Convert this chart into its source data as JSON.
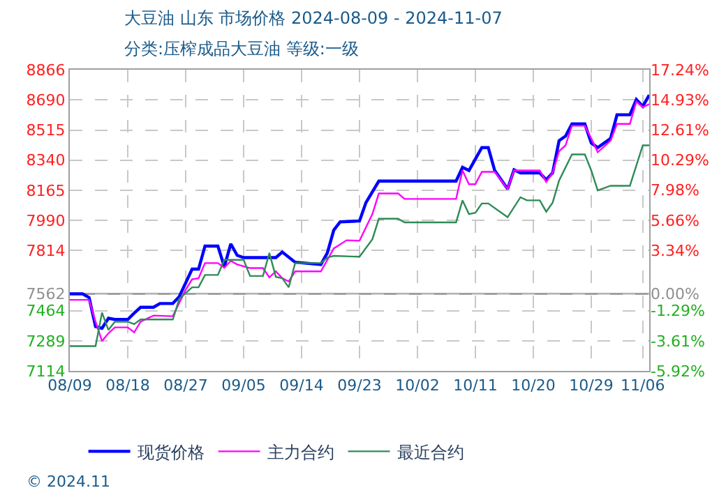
{
  "chart_data": {
    "type": "line",
    "title": "大豆油 山东 市场价格 2024-08-09 - 2024-11-07",
    "subtitle": "分类:压榨成品大豆油 等级:一级",
    "annotations": [
      "© 2024.11"
    ],
    "xlim": [
      "2024-08-09",
      "2024-11-07"
    ],
    "xticks": [
      {
        "value": "2024-08-09",
        "label": "08/09"
      },
      {
        "value": "2024-08-18",
        "label": "08/18"
      },
      {
        "value": "2024-08-27",
        "label": "08/27"
      },
      {
        "value": "2024-09-05",
        "label": "09/05"
      },
      {
        "value": "2024-09-14",
        "label": "09/14"
      },
      {
        "value": "2024-09-23",
        "label": "09/23"
      },
      {
        "value": "2024-10-02",
        "label": "10/02"
      },
      {
        "value": "2024-10-11",
        "label": "10/11"
      },
      {
        "value": "2024-10-20",
        "label": "10/20"
      },
      {
        "value": "2024-10-29",
        "label": "10/29"
      },
      {
        "value": "2024-11-06",
        "label": "11/06"
      }
    ],
    "ylim": [
      7114,
      8866
    ],
    "yticks": [
      8866,
      8690,
      8515,
      8340,
      8165,
      7990,
      7814,
      7562,
      7464,
      7289,
      7114
    ],
    "y2lim": [
      -5.92,
      17.24
    ],
    "y2ticks": [
      {
        "value": 17.24,
        "label": "17.24%"
      },
      {
        "value": 14.93,
        "label": "14.93%"
      },
      {
        "value": 12.61,
        "label": "12.61%"
      },
      {
        "value": 10.29,
        "label": "10.29%"
      },
      {
        "value": 7.98,
        "label": "7.98%"
      },
      {
        "value": 5.66,
        "label": "5.66%"
      },
      {
        "value": 3.34,
        "label": "3.34%"
      },
      {
        "value": 0,
        "label": "0.00%"
      },
      {
        "value": -1.29,
        "label": "-1.29%"
      },
      {
        "value": -3.61,
        "label": "-3.61%"
      },
      {
        "value": -5.92,
        "label": "-5.92%"
      }
    ],
    "ref_lines": [
      {
        "axis": "y",
        "value": 7562,
        "label": null,
        "color": "#a0a0a0"
      }
    ],
    "grid": true,
    "legend": "bottom",
    "line_style": "solid",
    "marker": "none",
    "series": [
      {
        "name": "现货价格",
        "color": "#0000ff",
        "x": [
          "2024-08-09",
          "2024-08-11",
          "2024-08-12",
          "2024-08-13",
          "2024-08-14",
          "2024-08-15",
          "2024-08-16",
          "2024-08-18",
          "2024-08-19",
          "2024-08-20",
          "2024-08-22",
          "2024-08-23",
          "2024-08-25",
          "2024-08-26",
          "2024-08-27",
          "2024-08-28",
          "2024-08-29",
          "2024-08-30",
          "2024-09-01",
          "2024-09-02",
          "2024-09-03",
          "2024-09-04",
          "2024-09-05",
          "2024-09-10",
          "2024-09-11",
          "2024-09-13",
          "2024-09-17",
          "2024-09-18",
          "2024-09-19",
          "2024-09-20",
          "2024-09-23",
          "2024-09-24",
          "2024-09-26",
          "2024-10-08",
          "2024-10-09",
          "2024-10-10",
          "2024-10-12",
          "2024-10-13",
          "2024-10-14",
          "2024-10-16",
          "2024-10-17",
          "2024-10-18",
          "2024-10-21",
          "2024-10-22",
          "2024-10-23",
          "2024-10-24",
          "2024-10-25",
          "2024-10-26",
          "2024-10-28",
          "2024-10-29",
          "2024-10-30",
          "2024-11-01",
          "2024-11-02",
          "2024-11-04",
          "2024-11-05",
          "2024-11-06",
          "2024-11-07"
        ],
        "values": [
          7562,
          7562,
          7540,
          7372,
          7362,
          7420,
          7413,
          7413,
          7450,
          7484,
          7484,
          7506,
          7506,
          7546,
          7626,
          7706,
          7706,
          7840,
          7840,
          7720,
          7853,
          7786,
          7773,
          7773,
          7805,
          7746,
          7733,
          7800,
          7933,
          7981,
          7986,
          8093,
          8218,
          8218,
          8298,
          8280,
          8413,
          8413,
          8280,
          8172,
          8284,
          8266,
          8266,
          8226,
          8266,
          8453,
          8480,
          8551,
          8551,
          8440,
          8413,
          8466,
          8604,
          8604,
          8693,
          8653,
          8719
        ]
      },
      {
        "name": "主力合约",
        "color": "#ff00ff",
        "x": [
          "2024-08-09",
          "2024-08-12",
          "2024-08-13",
          "2024-08-14",
          "2024-08-15",
          "2024-08-16",
          "2024-08-18",
          "2024-08-19",
          "2024-08-20",
          "2024-08-22",
          "2024-08-25",
          "2024-08-27",
          "2024-08-28",
          "2024-08-29",
          "2024-08-30",
          "2024-09-01",
          "2024-09-02",
          "2024-09-03",
          "2024-09-04",
          "2024-09-06",
          "2024-09-08",
          "2024-09-09",
          "2024-09-10",
          "2024-09-11",
          "2024-09-12",
          "2024-09-13",
          "2024-09-17",
          "2024-09-19",
          "2024-09-21",
          "2024-09-23",
          "2024-09-25",
          "2024-09-26",
          "2024-09-29",
          "2024-09-30",
          "2024-10-08",
          "2024-10-09",
          "2024-10-10",
          "2024-10-11",
          "2024-10-12",
          "2024-10-14",
          "2024-10-16",
          "2024-10-17",
          "2024-10-21",
          "2024-10-22",
          "2024-10-23",
          "2024-10-24",
          "2024-10-25",
          "2024-10-26",
          "2024-10-28",
          "2024-10-29",
          "2024-10-30",
          "2024-11-01",
          "2024-11-02",
          "2024-11-04",
          "2024-11-05",
          "2024-11-06",
          "2024-11-07"
        ],
        "values": [
          7527,
          7527,
          7400,
          7287,
          7333,
          7367,
          7367,
          7338,
          7400,
          7436,
          7432,
          7586,
          7647,
          7653,
          7741,
          7741,
          7714,
          7754,
          7733,
          7712,
          7712,
          7658,
          7693,
          7653,
          7634,
          7693,
          7693,
          7826,
          7874,
          7871,
          8026,
          8146,
          8146,
          8114,
          8114,
          8280,
          8200,
          8200,
          8272,
          8272,
          8172,
          8280,
          8280,
          8213,
          8266,
          8392,
          8426,
          8540,
          8540,
          8466,
          8386,
          8453,
          8551,
          8551,
          8680,
          8648,
          8666
        ]
      },
      {
        "name": "最近合约",
        "color": "#2e8b57",
        "x": [
          "2024-08-09",
          "2024-08-13",
          "2024-08-14",
          "2024-08-15",
          "2024-08-16",
          "2024-08-18",
          "2024-08-19",
          "2024-08-20",
          "2024-08-25",
          "2024-08-26",
          "2024-08-28",
          "2024-08-29",
          "2024-08-30",
          "2024-09-01",
          "2024-09-02",
          "2024-09-05",
          "2024-09-06",
          "2024-09-08",
          "2024-09-09",
          "2024-09-10",
          "2024-09-11",
          "2024-09-12",
          "2024-09-13",
          "2024-09-17",
          "2024-09-18",
          "2024-09-19",
          "2024-09-23",
          "2024-09-25",
          "2024-09-26",
          "2024-09-29",
          "2024-09-30",
          "2024-10-08",
          "2024-10-09",
          "2024-10-10",
          "2024-10-11",
          "2024-10-12",
          "2024-10-13",
          "2024-10-16",
          "2024-10-18",
          "2024-10-19",
          "2024-10-21",
          "2024-10-22",
          "2024-10-23",
          "2024-10-24",
          "2024-10-26",
          "2024-10-28",
          "2024-10-29",
          "2024-10-30",
          "2024-11-01",
          "2024-11-04",
          "2024-11-06",
          "2024-11-07"
        ],
        "values": [
          7258,
          7258,
          7453,
          7352,
          7400,
          7400,
          7386,
          7413,
          7413,
          7533,
          7600,
          7600,
          7672,
          7672,
          7760,
          7760,
          7666,
          7666,
          7800,
          7661,
          7653,
          7600,
          7741,
          7741,
          7773,
          7783,
          7778,
          7880,
          7999,
          7999,
          7978,
          7978,
          8106,
          8026,
          8034,
          8088,
          8088,
          8008,
          8124,
          8106,
          8106,
          8040,
          8093,
          8221,
          8373,
          8373,
          8280,
          8164,
          8191,
          8191,
          8426,
          8426
        ]
      }
    ]
  }
}
